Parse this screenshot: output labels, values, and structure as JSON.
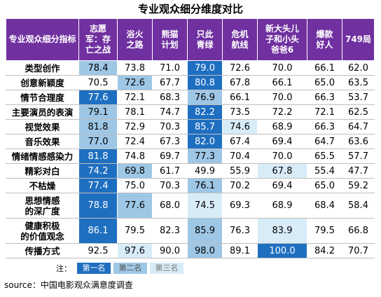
{
  "title": "专业观众细分维度对比",
  "chart_data": {
    "type": "table",
    "row_header_label": "专业观众细分指标",
    "columns": [
      "志愿军：存亡之战",
      "浴火之路",
      "熊猫计划",
      "只此青绿",
      "危机航线",
      "新大头儿子和小头爸爸6",
      "爆款好人",
      "749局"
    ],
    "columns_display": [
      "志愿\n军：存\n亡之战",
      "浴火\n之路",
      "熊猫\n计划",
      "只此\n青绿",
      "危机\n航线",
      "新大头儿\n子和小头\n爸爸6",
      "爆款\n好人",
      "749局"
    ],
    "rows": [
      {
        "label": "类型创作",
        "values": [
          78.4,
          73.8,
          71.0,
          79.0,
          72.6,
          70.0,
          66.1,
          62.0
        ],
        "ranks": [
          2,
          0,
          0,
          1,
          0,
          0,
          0,
          0
        ]
      },
      {
        "label": "创意新颖度",
        "values": [
          70.5,
          72.6,
          67.7,
          80.8,
          67.8,
          66.1,
          65.0,
          63.5
        ],
        "ranks": [
          0,
          2,
          0,
          1,
          0,
          0,
          0,
          0
        ]
      },
      {
        "label": "情节合理度",
        "values": [
          77.6,
          72.1,
          68.3,
          76.9,
          66.1,
          70.0,
          66.3,
          53.7
        ],
        "ranks": [
          1,
          0,
          0,
          2,
          0,
          0,
          0,
          0
        ]
      },
      {
        "label": "主要演员的表演",
        "values": [
          79.1,
          78.1,
          74.7,
          82.2,
          73.5,
          72.2,
          72.1,
          62.5
        ],
        "ranks": [
          2,
          0,
          0,
          1,
          0,
          0,
          0,
          0
        ]
      },
      {
        "label": "视觉效果",
        "values": [
          81.8,
          72.9,
          70.3,
          85.7,
          74.6,
          68.9,
          66.3,
          64.7
        ],
        "ranks": [
          2,
          0,
          0,
          1,
          3,
          0,
          0,
          0
        ]
      },
      {
        "label": "音乐效果",
        "values": [
          77.0,
          72.4,
          67.3,
          82.0,
          67.4,
          69.4,
          64.7,
          63.6
        ],
        "ranks": [
          2,
          0,
          0,
          1,
          0,
          0,
          0,
          0
        ]
      },
      {
        "label": "情绪情感感染力",
        "values": [
          81.8,
          74.8,
          69.7,
          77.3,
          70.4,
          70.0,
          65.5,
          57.7
        ],
        "ranks": [
          1,
          0,
          0,
          2,
          0,
          0,
          0,
          0
        ]
      },
      {
        "label": "精彩对白",
        "values": [
          74.2,
          69.8,
          61.7,
          49.9,
          55.9,
          67.8,
          55.4,
          47.7
        ],
        "ranks": [
          1,
          2,
          0,
          0,
          0,
          3,
          0,
          0
        ]
      },
      {
        "label": "不枯燥",
        "values": [
          77.4,
          75.0,
          70.3,
          76.1,
          70.2,
          69.4,
          65.0,
          59.2
        ],
        "ranks": [
          1,
          0,
          0,
          2,
          0,
          0,
          0,
          0
        ]
      },
      {
        "label": "思想情感\n的深广度",
        "values": [
          78.8,
          77.6,
          68.0,
          74.5,
          69.3,
          68.9,
          68.4,
          58.4
        ],
        "ranks": [
          1,
          2,
          0,
          3,
          0,
          0,
          0,
          0
        ]
      },
      {
        "label": "健康积极\n的价值观念",
        "values": [
          86.1,
          79.5,
          82.3,
          85.9,
          76.3,
          83.9,
          79.5,
          66.8
        ],
        "ranks": [
          1,
          0,
          0,
          2,
          0,
          3,
          0,
          0
        ]
      },
      {
        "label": "传播方式",
        "values": [
          92.5,
          97.6,
          90.0,
          98.0,
          89.1,
          100.0,
          84.2,
          70.7
        ],
        "ranks": [
          0,
          3,
          0,
          2,
          0,
          1,
          0,
          0
        ]
      }
    ],
    "legend": [
      "第一名",
      "第二名",
      "第三名"
    ],
    "colors": {
      "header": "#7030a0",
      "rank1": "#1f6fc1",
      "rank2": "#9ec7e6",
      "rank3": "#d8ecf8"
    }
  },
  "note_label": "注：",
  "source": "source：中国电影观众满意度调查"
}
